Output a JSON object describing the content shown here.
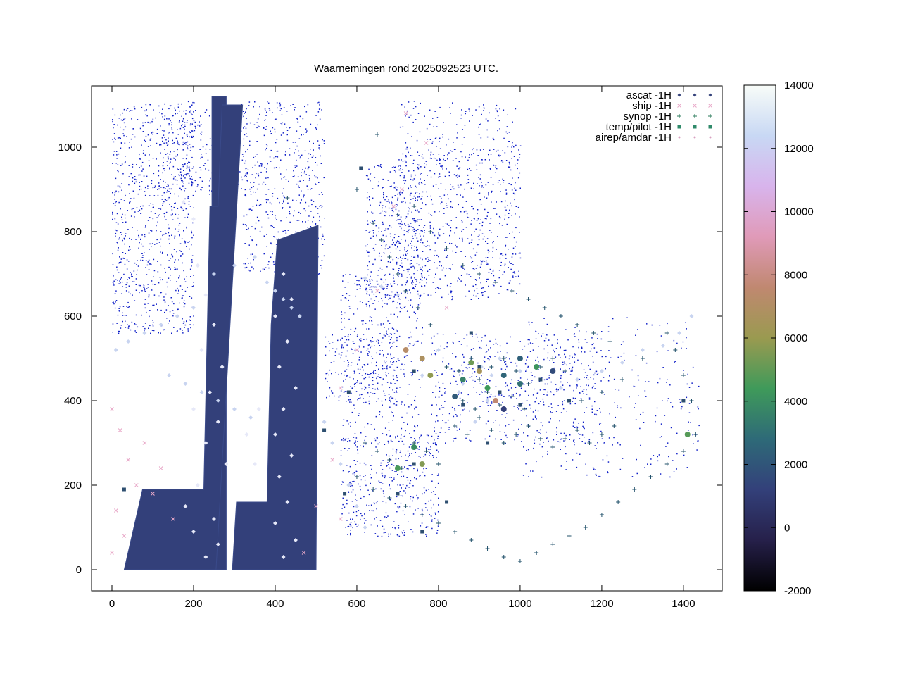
{
  "chart_data": {
    "type": "scatter",
    "title": "Waarnemingen rond 2025092523 UTC.",
    "xlim": [
      -50,
      1495
    ],
    "ylim": [
      -50,
      1145
    ],
    "xticks": [
      0,
      200,
      400,
      600,
      800,
      1000,
      1200,
      1400
    ],
    "yticks": [
      0,
      200,
      400,
      600,
      800,
      1000
    ],
    "grid": false,
    "legend_placement": "top-right",
    "legend": [
      {
        "label": "ascat -1H",
        "symbol": "diamond",
        "color": "#33407a"
      },
      {
        "label": "ship -1H",
        "symbol": "x",
        "color": "#e8a8c8"
      },
      {
        "label": "synop -1H",
        "symbol": "plus",
        "color": "#2a7a5a"
      },
      {
        "label": "temp/pilot -1H",
        "symbol": "square",
        "color": "#2f8a6a"
      },
      {
        "label": "airep/amdar -1H",
        "symbol": "dot",
        "color": "#d8a0c0"
      }
    ],
    "colorbar": {
      "min": -2000,
      "max": 14000,
      "ticks": [
        -2000,
        0,
        2000,
        4000,
        6000,
        8000,
        10000,
        12000,
        14000
      ],
      "colors": [
        "#000000",
        "#26204a",
        "#33407a",
        "#2e6a78",
        "#3f9a5a",
        "#9a9a50",
        "#c08870",
        "#e09ab8",
        "#d8b4ec",
        "#c8d8f4",
        "#f8fcf8"
      ]
    },
    "ascat_swaths": [
      {
        "polygon": [
          [
            30,
            0
          ],
          [
            245,
            0
          ],
          [
            245,
            1120
          ],
          [
            280,
            1120
          ],
          [
            280,
            0
          ],
          [
            280,
            0
          ]
        ]
      },
      {
        "polygon": [
          [
            30,
            0
          ],
          [
            255,
            0
          ],
          [
            320,
            1100
          ],
          [
            270,
            1100
          ],
          [
            260,
            860
          ],
          [
            240,
            860
          ],
          [
            225,
            190
          ],
          [
            75,
            190
          ]
        ]
      },
      {
        "polygon": [
          [
            295,
            0
          ],
          [
            500,
            0
          ],
          [
            505,
            815
          ],
          [
            405,
            780
          ],
          [
            390,
            580
          ],
          [
            380,
            160
          ],
          [
            305,
            160
          ]
        ]
      }
    ],
    "ascat_points": [
      [
        175,
        870
      ],
      [
        200,
        830
      ],
      [
        210,
        720
      ],
      [
        230,
        650
      ],
      [
        250,
        580
      ],
      [
        220,
        520
      ],
      [
        270,
        480
      ],
      [
        240,
        420
      ],
      [
        200,
        380
      ],
      [
        260,
        350
      ],
      [
        230,
        300
      ],
      [
        280,
        250
      ],
      [
        210,
        200
      ],
      [
        180,
        150
      ],
      [
        250,
        120
      ],
      [
        200,
        90
      ],
      [
        260,
        60
      ],
      [
        230,
        30
      ],
      [
        420,
        700
      ],
      [
        440,
        640
      ],
      [
        400,
        600
      ],
      [
        430,
        540
      ],
      [
        410,
        480
      ],
      [
        450,
        430
      ],
      [
        420,
        380
      ],
      [
        400,
        320
      ],
      [
        440,
        270
      ],
      [
        410,
        220
      ],
      [
        430,
        160
      ],
      [
        400,
        110
      ],
      [
        450,
        70
      ],
      [
        420,
        30
      ],
      [
        360,
        380
      ],
      [
        330,
        320
      ],
      [
        350,
        250
      ]
    ],
    "ship_points": [
      [
        0,
        380
      ],
      [
        20,
        330
      ],
      [
        40,
        260
      ],
      [
        60,
        200
      ],
      [
        10,
        140
      ],
      [
        30,
        80
      ],
      [
        0,
        40
      ],
      [
        80,
        300
      ],
      [
        120,
        240
      ],
      [
        100,
        180
      ],
      [
        150,
        120
      ],
      [
        500,
        150
      ],
      [
        540,
        260
      ],
      [
        560,
        430
      ],
      [
        600,
        520
      ],
      [
        650,
        660
      ],
      [
        690,
        860
      ],
      [
        720,
        1080
      ],
      [
        770,
        1010
      ],
      [
        710,
        900
      ],
      [
        820,
        620
      ],
      [
        560,
        120
      ],
      [
        470,
        40
      ]
    ],
    "synop_points": [
      [
        820,
        480
      ],
      [
        850,
        470
      ],
      [
        880,
        500
      ],
      [
        900,
        450
      ],
      [
        930,
        480
      ],
      [
        960,
        500
      ],
      [
        990,
        470
      ],
      [
        1020,
        440
      ],
      [
        1050,
        480
      ],
      [
        1080,
        500
      ],
      [
        1110,
        470
      ],
      [
        860,
        400
      ],
      [
        890,
        380
      ],
      [
        920,
        420
      ],
      [
        950,
        390
      ],
      [
        980,
        410
      ],
      [
        1010,
        380
      ],
      [
        840,
        340
      ],
      [
        870,
        320
      ],
      [
        900,
        360
      ],
      [
        930,
        330
      ],
      [
        960,
        300
      ],
      [
        990,
        320
      ],
      [
        1020,
        340
      ],
      [
        1050,
        310
      ],
      [
        1080,
        290
      ],
      [
        1110,
        310
      ],
      [
        1140,
        330
      ],
      [
        1170,
        300
      ],
      [
        1200,
        320
      ],
      [
        1230,
        340
      ],
      [
        620,
        300
      ],
      [
        650,
        280
      ],
      [
        680,
        260
      ],
      [
        710,
        240
      ],
      [
        740,
        300
      ],
      [
        770,
        280
      ],
      [
        800,
        250
      ],
      [
        600,
        220
      ],
      [
        640,
        190
      ],
      [
        680,
        170
      ],
      [
        720,
        150
      ],
      [
        760,
        130
      ],
      [
        800,
        110
      ],
      [
        840,
        90
      ],
      [
        880,
        70
      ],
      [
        920,
        50
      ],
      [
        960,
        30
      ],
      [
        1000,
        20
      ],
      [
        1040,
        40
      ],
      [
        1080,
        60
      ],
      [
        1120,
        80
      ],
      [
        1160,
        100
      ],
      [
        1200,
        130
      ],
      [
        1240,
        160
      ],
      [
        1280,
        190
      ],
      [
        1320,
        220
      ],
      [
        1360,
        250
      ],
      [
        1400,
        280
      ],
      [
        1430,
        320
      ],
      [
        1420,
        400
      ],
      [
        1400,
        460
      ],
      [
        1380,
        520
      ],
      [
        1360,
        560
      ],
      [
        1300,
        500
      ],
      [
        1250,
        450
      ],
      [
        1200,
        420
      ],
      [
        1150,
        400
      ],
      [
        780,
        580
      ],
      [
        750,
        620
      ],
      [
        720,
        660
      ],
      [
        700,
        700
      ],
      [
        680,
        740
      ],
      [
        660,
        780
      ],
      [
        640,
        820
      ],
      [
        700,
        840
      ],
      [
        740,
        860
      ],
      [
        780,
        800
      ],
      [
        820,
        760
      ],
      [
        860,
        720
      ],
      [
        900,
        700
      ],
      [
        940,
        680
      ],
      [
        980,
        660
      ],
      [
        1020,
        640
      ],
      [
        1060,
        620
      ],
      [
        1100,
        600
      ],
      [
        1140,
        580
      ],
      [
        1180,
        560
      ],
      [
        1220,
        540
      ],
      [
        430,
        880
      ],
      [
        600,
        900
      ],
      [
        650,
        1030
      ]
    ],
    "temp_pilot_points": [
      [
        610,
        950
      ],
      [
        740,
        470
      ],
      [
        900,
        480
      ],
      [
        950,
        420
      ],
      [
        1000,
        390
      ],
      [
        860,
        390
      ],
      [
        920,
        300
      ],
      [
        880,
        560
      ],
      [
        740,
        250
      ],
      [
        820,
        160
      ],
      [
        1050,
        450
      ],
      [
        1120,
        400
      ],
      [
        1400,
        400
      ],
      [
        1410,
        320
      ],
      [
        700,
        180
      ],
      [
        760,
        90
      ],
      [
        580,
        420
      ],
      [
        520,
        330
      ],
      [
        570,
        180
      ],
      [
        30,
        190
      ]
    ],
    "airep_points": [
      [
        880,
        500
      ],
      [
        905,
        480
      ],
      [
        930,
        460
      ],
      [
        860,
        440
      ],
      [
        920,
        400
      ],
      [
        950,
        500
      ],
      [
        1000,
        470
      ],
      [
        850,
        420
      ],
      [
        890,
        350
      ],
      [
        760,
        460
      ],
      [
        800,
        520
      ],
      [
        1350,
        530
      ],
      [
        1390,
        560
      ],
      [
        1420,
        600
      ],
      [
        1300,
        520
      ],
      [
        1250,
        490
      ],
      [
        1200,
        470
      ],
      [
        1140,
        450
      ],
      [
        1100,
        430
      ],
      [
        620,
        690
      ],
      [
        660,
        670
      ],
      [
        700,
        650
      ],
      [
        420,
        640
      ],
      [
        440,
        620
      ],
      [
        460,
        600
      ],
      [
        400,
        660
      ],
      [
        380,
        680
      ],
      [
        200,
        620
      ],
      [
        160,
        600
      ],
      [
        120,
        580
      ],
      [
        80,
        560
      ],
      [
        40,
        540
      ],
      [
        10,
        520
      ],
      [
        140,
        460
      ],
      [
        180,
        440
      ],
      [
        220,
        420
      ],
      [
        260,
        400
      ],
      [
        300,
        380
      ],
      [
        340,
        360
      ],
      [
        520,
        350
      ],
      [
        540,
        300
      ],
      [
        560,
        250
      ],
      [
        580,
        200
      ],
      [
        600,
        150
      ],
      [
        620,
        100
      ],
      [
        250,
        700
      ],
      [
        300,
        720
      ],
      [
        350,
        740
      ]
    ],
    "colored_clusters": [
      {
        "x": 880,
        "y": 490,
        "value": 5200
      },
      {
        "x": 900,
        "y": 470,
        "value": 6500
      },
      {
        "x": 920,
        "y": 430,
        "value": 4400
      },
      {
        "x": 860,
        "y": 450,
        "value": 3600
      },
      {
        "x": 960,
        "y": 460,
        "value": 2600
      },
      {
        "x": 1000,
        "y": 440,
        "value": 3000
      },
      {
        "x": 1040,
        "y": 480,
        "value": 4200
      },
      {
        "x": 840,
        "y": 410,
        "value": 2200
      },
      {
        "x": 760,
        "y": 500,
        "value": 6800
      },
      {
        "x": 780,
        "y": 460,
        "value": 5800
      },
      {
        "x": 720,
        "y": 520,
        "value": 7200
      },
      {
        "x": 740,
        "y": 290,
        "value": 3900
      },
      {
        "x": 760,
        "y": 250,
        "value": 5600
      },
      {
        "x": 700,
        "y": 240,
        "value": 4600
      },
      {
        "x": 940,
        "y": 400,
        "value": 7600
      },
      {
        "x": 1410,
        "y": 320,
        "value": 4800
      },
      {
        "x": 1000,
        "y": 500,
        "value": 2400
      },
      {
        "x": 1080,
        "y": 470,
        "value": 1600
      },
      {
        "x": 960,
        "y": 380,
        "value": 1200
      }
    ]
  }
}
